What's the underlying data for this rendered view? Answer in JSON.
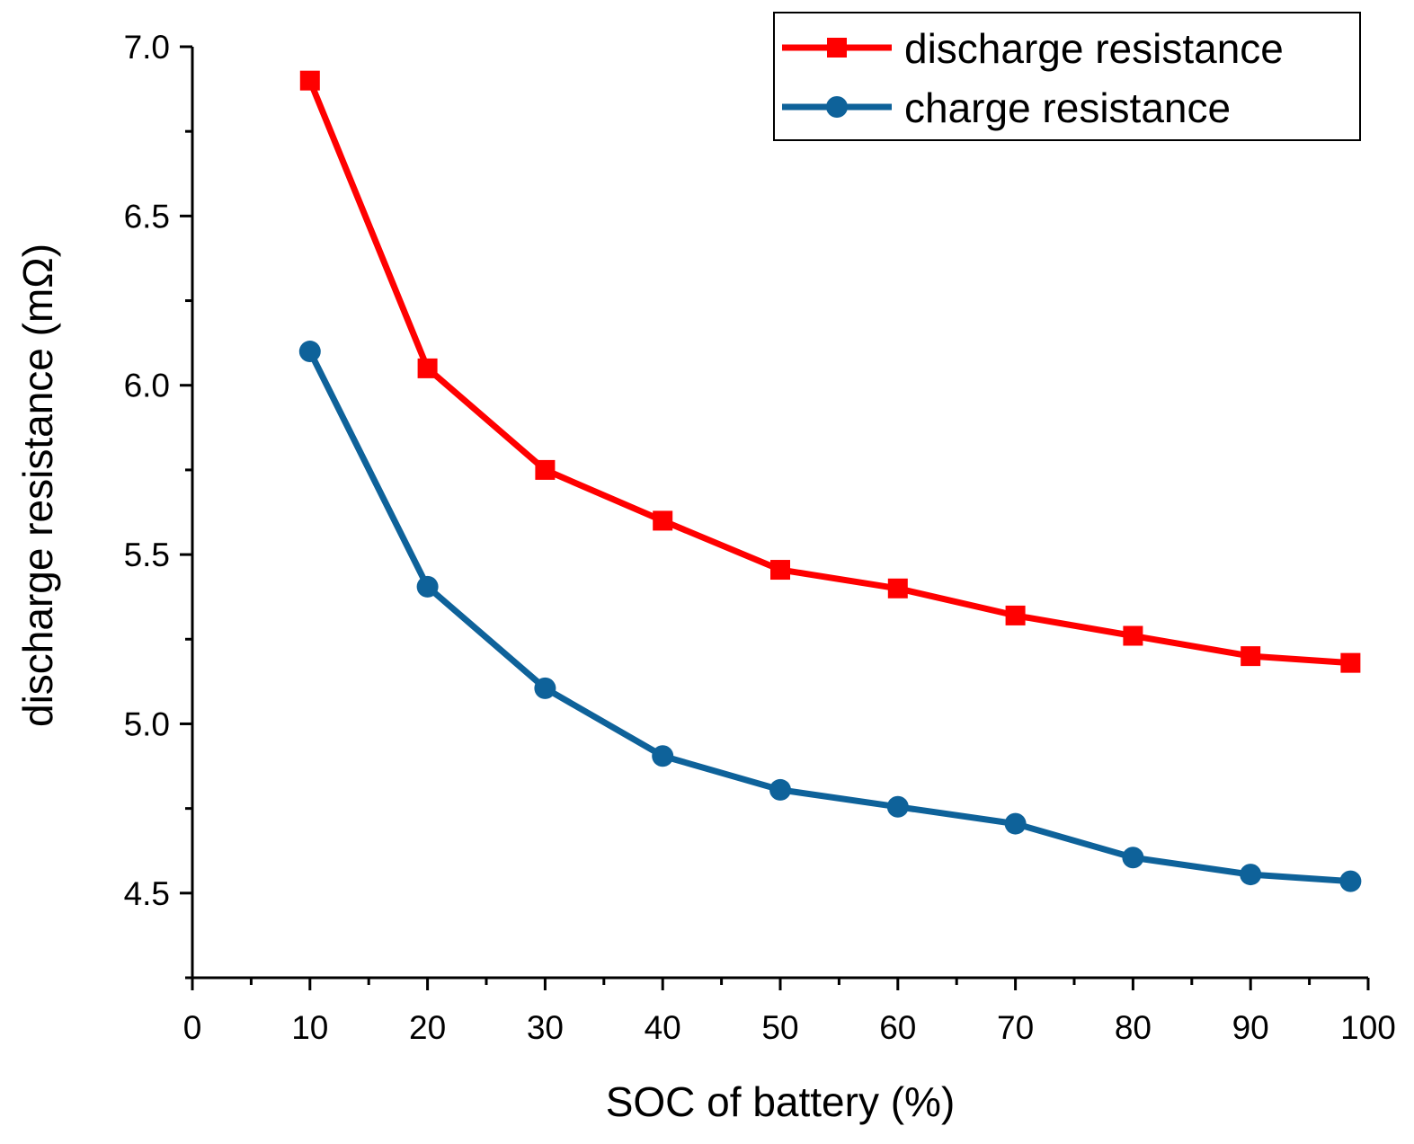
{
  "chart_data": {
    "type": "line",
    "xlabel": "SOC of battery (%)",
    "ylabel": "discharge resistance (mΩ)",
    "xlim": [
      0,
      100
    ],
    "ylim": [
      4.25,
      7.0
    ],
    "x_major_ticks": [
      0,
      10,
      20,
      30,
      40,
      50,
      60,
      70,
      80,
      90,
      100
    ],
    "x_minor_ticks": [
      5,
      15,
      25,
      35,
      45,
      55,
      65,
      75,
      85,
      95
    ],
    "x_tick_labels": [
      "0",
      "10",
      "20",
      "30",
      "40",
      "50",
      "60",
      "70",
      "80",
      "90",
      "100"
    ],
    "y_major_ticks": [
      4.5,
      5.0,
      5.5,
      6.0,
      6.5,
      7.0
    ],
    "y_minor_ticks": [
      4.25,
      4.75,
      5.25,
      5.75,
      6.25,
      6.75
    ],
    "y_tick_labels": [
      "4.5",
      "5.0",
      "5.5",
      "6.0",
      "6.5",
      "7.0"
    ],
    "grid": false,
    "legend_position": "top-right",
    "series": [
      {
        "name": "discharge resistance",
        "color": "#ff0000",
        "marker": "square",
        "x": [
          10,
          20,
          30,
          40,
          50,
          60,
          70,
          80,
          90,
          98.5
        ],
        "y": [
          6.9,
          6.05,
          5.75,
          5.6,
          5.455,
          5.4,
          5.32,
          5.26,
          5.2,
          5.18
        ]
      },
      {
        "name": "charge resistance",
        "color": "#0e629a",
        "marker": "circle",
        "x": [
          10,
          20,
          30,
          40,
          50,
          60,
          70,
          80,
          90,
          98.5
        ],
        "y": [
          6.1,
          5.405,
          5.105,
          4.905,
          4.805,
          4.755,
          4.705,
          4.605,
          4.555,
          4.535
        ]
      }
    ]
  }
}
